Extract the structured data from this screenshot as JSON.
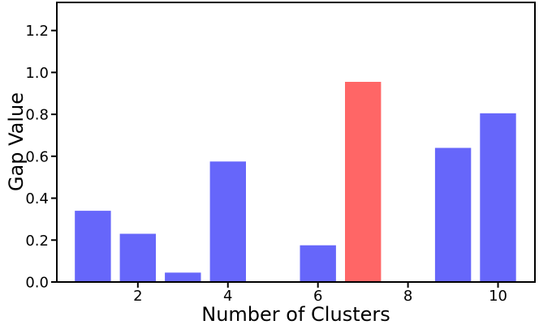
{
  "chart_data": {
    "type": "bar",
    "title": "",
    "xlabel": "Number of Clusters",
    "ylabel": "Gap Value",
    "categories": [
      1,
      2,
      3,
      4,
      5,
      6,
      7,
      8,
      9,
      10
    ],
    "values": [
      0.34,
      0.23,
      0.045,
      0.575,
      0,
      0.175,
      0.955,
      0,
      0.64,
      0.805
    ],
    "highlight_category": 7,
    "bar_width": 0.8,
    "xlim": [
      0.2,
      10.82
    ],
    "ylim": [
      0,
      1.334
    ],
    "xticks": [
      2,
      4,
      6,
      8,
      10
    ],
    "ytick_labels": [
      "0.0",
      "0.2",
      "0.4",
      "0.6",
      "0.8",
      "1.0",
      "1.2"
    ],
    "grid": false,
    "legend": "none",
    "colors": {
      "bar": "#6666fa",
      "highlight": "#ff6666",
      "axis": "#000000",
      "text": "#000000",
      "background": "#ffffff"
    }
  }
}
